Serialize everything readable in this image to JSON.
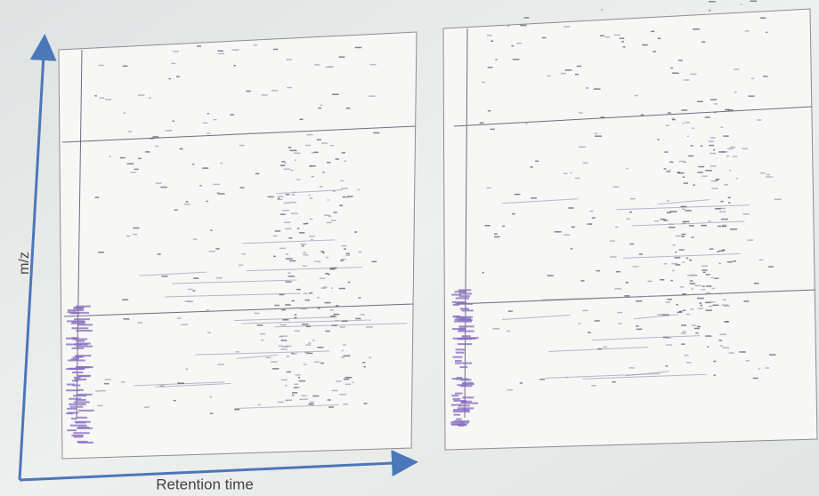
{
  "axes": {
    "y_label": "m/z",
    "x_label": "Retention time"
  }
}
